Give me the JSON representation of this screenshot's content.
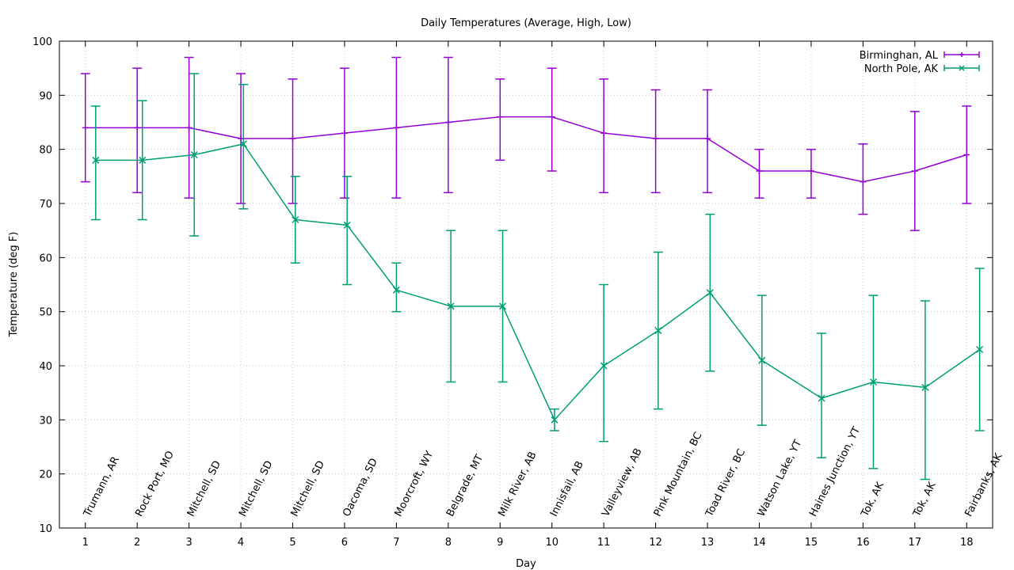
{
  "chart_data": {
    "type": "line",
    "title": "Daily Temperatures (Average, High, Low)",
    "xlabel": "Day",
    "ylabel": "Temperature (deg F)",
    "xlim": [
      0.5,
      18.5
    ],
    "ylim": [
      10,
      100
    ],
    "xticks": [
      1,
      2,
      3,
      4,
      5,
      6,
      7,
      8,
      9,
      10,
      11,
      12,
      13,
      14,
      15,
      16,
      17,
      18
    ],
    "yticks": [
      10,
      20,
      30,
      40,
      50,
      60,
      70,
      80,
      90,
      100
    ],
    "grid": true,
    "legend_position": "top-right",
    "location_labels": [
      "Trumann, AR",
      "Rock Port, MO",
      "Mitchell, SD",
      "Mitchell, SD",
      "Mitchell, SD",
      "Oacoma, SD",
      "Moorcroft, WY",
      "Belgrade, MT",
      "Milk River, AB",
      "Innisfail, AB",
      "Valleyview, AB",
      "Pink Mountain, BC",
      "Toad River, BC",
      "Watson Lake, YT",
      "Haines Junction, YT",
      "Tok, AK",
      "Tok, AK",
      "Fairbanks, AK"
    ],
    "series": [
      {
        "name": "Birminghan, AL",
        "color": "#9400d3",
        "marker": "plus",
        "x": [
          1,
          2,
          3,
          4,
          5,
          6,
          7,
          8,
          9,
          10,
          11,
          12,
          13,
          14,
          15,
          16,
          17,
          18
        ],
        "avg": [
          84,
          84,
          84,
          82,
          82,
          83,
          84,
          85,
          86,
          86,
          83,
          82,
          82,
          76,
          76,
          74,
          76,
          79
        ],
        "high": [
          94,
          95,
          97,
          94,
          93,
          95,
          97,
          97,
          93,
          95,
          93,
          91,
          91,
          80,
          80,
          81,
          87,
          88
        ],
        "low": [
          74,
          72,
          71,
          70,
          70,
          71,
          71,
          72,
          78,
          76,
          72,
          72,
          72,
          71,
          71,
          68,
          65,
          70
        ]
      },
      {
        "name": "North Pole, AK",
        "color": "#009e73",
        "marker": "cross",
        "x": [
          1.2,
          2.1,
          3.1,
          4.05,
          5.05,
          6.05,
          7.0,
          8.05,
          9.05,
          10.05,
          11.0,
          12.05,
          13.05,
          14.05,
          15.2,
          16.2,
          17.2,
          18.25
        ],
        "avg": [
          78,
          78,
          79,
          81,
          67,
          66,
          54,
          51,
          51,
          30,
          40,
          46.5,
          53.5,
          41,
          34,
          37,
          36,
          43
        ],
        "high": [
          88,
          89,
          94,
          92,
          75,
          75,
          59,
          65,
          65,
          32,
          55,
          61,
          68,
          53,
          46,
          53,
          52,
          58
        ],
        "low": [
          67,
          67,
          64,
          69,
          59,
          55,
          50,
          37,
          37,
          28,
          26,
          32,
          39,
          29,
          23,
          21,
          19,
          28
        ]
      }
    ]
  }
}
